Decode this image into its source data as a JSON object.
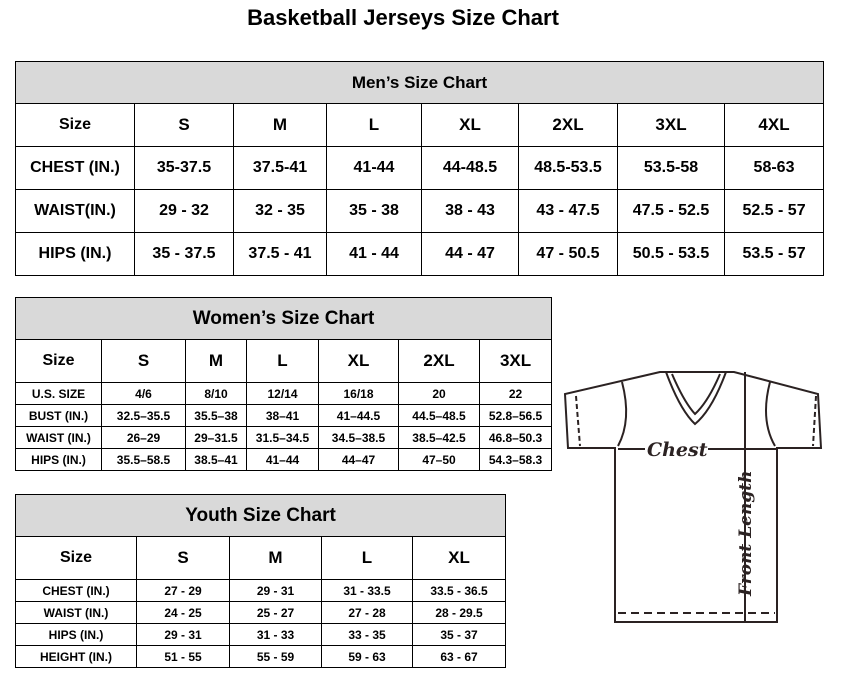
{
  "title": "Basketball Jerseys Size Chart",
  "men": {
    "title": "Men’s Size Chart",
    "headers": [
      "Size",
      "S",
      "M",
      "L",
      "XL",
      "2XL",
      "3XL",
      "4XL"
    ],
    "rows": [
      [
        "CHEST (IN.)",
        "35-37.5",
        "37.5-41",
        "41-44",
        "44-48.5",
        "48.5-53.5",
        "53.5-58",
        "58-63"
      ],
      [
        "WAIST(IN.)",
        "29 - 32",
        "32 - 35",
        "35 - 38",
        "38 - 43",
        "43 - 47.5",
        "47.5 - 52.5",
        "52.5 - 57"
      ],
      [
        "HIPS (IN.)",
        "35 - 37.5",
        "37.5 - 41",
        "41 - 44",
        "44 - 47",
        "47 - 50.5",
        "50.5 - 53.5",
        "53.5 - 57"
      ]
    ]
  },
  "women": {
    "title": "Women’s Size Chart",
    "headers": [
      "Size",
      "S",
      "M",
      "L",
      "XL",
      "2XL",
      "3XL"
    ],
    "rows": [
      [
        "U.S. SIZE",
        "4/6",
        "8/10",
        "12/14",
        "16/18",
        "20",
        "22"
      ],
      [
        "BUST (IN.)",
        "32.5–35.5",
        "35.5–38",
        "38–41",
        "41–44.5",
        "44.5–48.5",
        "52.8–56.5"
      ],
      [
        "WAIST (IN.)",
        "26–29",
        "29–31.5",
        "31.5–34.5",
        "34.5–38.5",
        "38.5–42.5",
        "46.8–50.3"
      ],
      [
        "HIPS (IN.)",
        "35.5–58.5",
        "38.5–41",
        "41–44",
        "44–47",
        "47–50",
        "54.3–58.3"
      ]
    ]
  },
  "youth": {
    "title": "Youth Size Chart",
    "headers": [
      "Size",
      "S",
      "M",
      "L",
      "XL"
    ],
    "rows": [
      [
        "CHEST (IN.)",
        "27 - 29",
        "29 - 31",
        "31 - 33.5",
        "33.5 - 36.5"
      ],
      [
        "WAIST (IN.)",
        "24 - 25",
        "25 - 27",
        "27 - 28",
        "28 - 29.5"
      ],
      [
        "HIPS (IN.)",
        "29 - 31",
        "31 - 33",
        "33 - 35",
        "35 - 37"
      ],
      [
        "HEIGHT (IN.)",
        "51 - 55",
        "55 - 59",
        "59 - 63",
        "63 - 67"
      ]
    ]
  },
  "diagram": {
    "chest_label": "Chest",
    "length_label": "Front Length"
  }
}
